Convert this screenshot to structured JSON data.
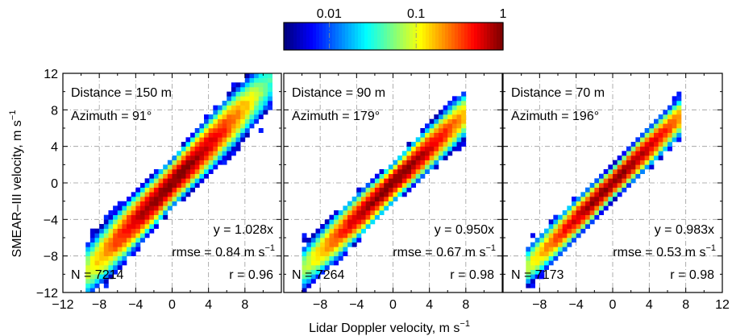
{
  "colorbar": {
    "scale": "log",
    "range": [
      0.003,
      1
    ],
    "ticks": [
      {
        "value": 0.01,
        "label": "0.01"
      },
      {
        "value": 0.1,
        "label": "0.1"
      },
      {
        "value": 1,
        "label": "1"
      }
    ],
    "colormap": "jet"
  },
  "axes": {
    "xlabel": "Lidar Doppler velocity, m s",
    "xlabel_sup": "−1",
    "ylabel": "SMEAR–III velocity, m s",
    "ylabel_sup": "−1",
    "xlim": [
      -12,
      12
    ],
    "ylim": [
      -12,
      12
    ],
    "grid": true,
    "grid_style": "dash-dot"
  },
  "chart_data": [
    {
      "type": "heatmap",
      "panel": "left",
      "distance_label": "Distance = 150 m",
      "azimuth_label": "Azimuth = 91°",
      "fit_label": "y = 1.028x",
      "slope": 1.028,
      "rmse_label": "rmse = 0.84 m s",
      "rmse_sup": "−1",
      "n_label": "N = 7214",
      "r_label": "r = 0.96",
      "N": 7214,
      "r": 0.96,
      "rmse": 0.84,
      "data_range": [
        -9.5,
        10.8
      ],
      "spread": 0.85,
      "xticks": [
        {
          "v": -12,
          "l": "−12"
        },
        {
          "v": -8,
          "l": "−8"
        },
        {
          "v": -4,
          "l": "−4"
        },
        {
          "v": 0,
          "l": "0"
        },
        {
          "v": 4,
          "l": "4"
        },
        {
          "v": 8,
          "l": "8"
        }
      ],
      "yticks": [
        {
          "v": -12,
          "l": "−12"
        },
        {
          "v": -8,
          "l": "−8"
        },
        {
          "v": -4,
          "l": "−4"
        },
        {
          "v": 0,
          "l": "0"
        },
        {
          "v": 4,
          "l": "4"
        },
        {
          "v": 8,
          "l": "8"
        },
        {
          "v": 12,
          "l": "12"
        }
      ]
    },
    {
      "type": "heatmap",
      "panel": "middle",
      "distance_label": "Distance = 90 m",
      "azimuth_label": "Azimuth = 179°",
      "fit_label": "y = 0.950x",
      "slope": 0.95,
      "rmse_label": "rmse = 0.67 m s",
      "rmse_sup": "−1",
      "n_label": "N = 7264",
      "r_label": "r = 0.98",
      "N": 7264,
      "r": 0.98,
      "rmse": 0.67,
      "data_range": [
        -10,
        7.8
      ],
      "spread": 0.7,
      "xticks": [
        {
          "v": -8,
          "l": "−8"
        },
        {
          "v": -4,
          "l": "−4"
        },
        {
          "v": 0,
          "l": "0"
        },
        {
          "v": 4,
          "l": "4"
        },
        {
          "v": 8,
          "l": "8"
        }
      ],
      "yticks": []
    },
    {
      "type": "heatmap",
      "panel": "right",
      "distance_label": "Distance = 70 m",
      "azimuth_label": "Azimuth = 196°",
      "fit_label": "y = 0.983x",
      "slope": 0.983,
      "rmse_label": "rmse = 0.53 m s",
      "rmse_sup": "−1",
      "n_label": "N = 7173",
      "r_label": "r = 0.98",
      "N": 7173,
      "r": 0.98,
      "rmse": 0.53,
      "data_range": [
        -9.5,
        7.5
      ],
      "spread": 0.6,
      "xticks": [
        {
          "v": -8,
          "l": "−8"
        },
        {
          "v": -4,
          "l": "−4"
        },
        {
          "v": 0,
          "l": "0"
        },
        {
          "v": 4,
          "l": "4"
        },
        {
          "v": 8,
          "l": "8"
        },
        {
          "v": 12,
          "l": "12"
        }
      ],
      "yticks": []
    }
  ]
}
